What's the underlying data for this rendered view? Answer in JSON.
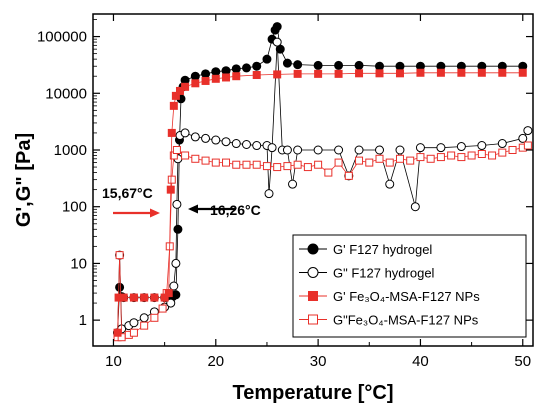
{
  "chart_data": {
    "type": "scatter",
    "xlabel": "Temperature [°C]",
    "ylabel": "G',G\" [Pa]",
    "xlim": [
      8,
      51
    ],
    "ylim": [
      0.35,
      250000
    ],
    "yscale": "log",
    "xticks": [
      "10",
      "20",
      "30",
      "40",
      "50"
    ],
    "yticks": [
      "1",
      "10",
      "100",
      "1000",
      "10000",
      "100000"
    ],
    "annotations": {
      "left": "15,67°C",
      "right": "16,26°C"
    },
    "legend_position": "bottom-right",
    "colors": {
      "black": "#000000",
      "red": "#e8302a"
    },
    "series": [
      {
        "name": "G' F127 hydrogel",
        "marker": "filled-circle",
        "color": "#000000",
        "points": [
          [
            10.4,
            0.6
          ],
          [
            10.6,
            3.8
          ],
          [
            10.8,
            2.6
          ],
          [
            11,
            2.5
          ],
          [
            12,
            2.5
          ],
          [
            13,
            2.5
          ],
          [
            14,
            2.5
          ],
          [
            15,
            2.5
          ],
          [
            15.8,
            2.6
          ],
          [
            16.1,
            2.8
          ],
          [
            16.3,
            40
          ],
          [
            16.45,
            1500
          ],
          [
            16.6,
            8000
          ],
          [
            16.8,
            13000
          ],
          [
            17,
            17000
          ],
          [
            18,
            20000
          ],
          [
            19,
            22000
          ],
          [
            20,
            24000
          ],
          [
            21,
            25000
          ],
          [
            22,
            27000
          ],
          [
            23,
            28000
          ],
          [
            24,
            30000
          ],
          [
            25,
            40000
          ],
          [
            25.5,
            90000
          ],
          [
            25.8,
            130000
          ],
          [
            26,
            150000
          ],
          [
            26.3,
            60000
          ],
          [
            27,
            34000
          ],
          [
            28,
            32000
          ],
          [
            30,
            31000
          ],
          [
            32,
            31000
          ],
          [
            34,
            31000
          ],
          [
            36,
            30000
          ],
          [
            38,
            30000
          ],
          [
            40,
            30000
          ],
          [
            42,
            30000
          ],
          [
            44,
            30000
          ],
          [
            46,
            30000
          ],
          [
            48,
            30000
          ],
          [
            50,
            30000
          ]
        ]
      },
      {
        "name": "G\" F127 hydrogel",
        "marker": "open-circle",
        "color": "#000000",
        "points": [
          [
            10.4,
            0.6
          ],
          [
            10.6,
            14
          ],
          [
            10.8,
            0.7
          ],
          [
            11.5,
            0.8
          ],
          [
            12,
            0.9
          ],
          [
            13,
            1.1
          ],
          [
            14,
            1.4
          ],
          [
            15,
            1.7
          ],
          [
            15.6,
            2
          ],
          [
            15.9,
            4
          ],
          [
            16.1,
            10
          ],
          [
            16.2,
            110
          ],
          [
            16.3,
            700
          ],
          [
            16.5,
            1800
          ],
          [
            17,
            2000
          ],
          [
            18,
            1700
          ],
          [
            19,
            1600
          ],
          [
            20,
            1500
          ],
          [
            21,
            1400
          ],
          [
            22,
            1300
          ],
          [
            23,
            1250
          ],
          [
            24,
            1200
          ],
          [
            25,
            1200
          ],
          [
            25.2,
            170
          ],
          [
            25.5,
            1100
          ],
          [
            26,
            80000
          ],
          [
            26.5,
            1000
          ],
          [
            27,
            1000
          ],
          [
            27.5,
            250
          ],
          [
            28,
            1000
          ],
          [
            30,
            1000
          ],
          [
            32,
            1000
          ],
          [
            33,
            350
          ],
          [
            34,
            1000
          ],
          [
            36,
            1000
          ],
          [
            37,
            250
          ],
          [
            38,
            1000
          ],
          [
            39.5,
            100
          ],
          [
            40,
            1100
          ],
          [
            42,
            1100
          ],
          [
            44,
            1150
          ],
          [
            46,
            1200
          ],
          [
            48,
            1300
          ],
          [
            50,
            1600
          ],
          [
            50.5,
            2200
          ]
        ]
      },
      {
        "name": "G' Fe3O4-MSA-F127 NPs",
        "marker": "filled-square",
        "color": "#e8302a",
        "points": [
          [
            10.4,
            0.6
          ],
          [
            10.5,
            2.5
          ],
          [
            11,
            2.5
          ],
          [
            12,
            2.5
          ],
          [
            13,
            2.5
          ],
          [
            14,
            2.5
          ],
          [
            15,
            2.5
          ],
          [
            15.4,
            3
          ],
          [
            15.6,
            200
          ],
          [
            15.7,
            2000
          ],
          [
            15.9,
            6000
          ],
          [
            16.1,
            9000
          ],
          [
            16.5,
            11000
          ],
          [
            17,
            13000
          ],
          [
            18,
            15000
          ],
          [
            19,
            16500
          ],
          [
            20,
            18000
          ],
          [
            21,
            19000
          ],
          [
            22,
            20000
          ],
          [
            24,
            21000
          ],
          [
            26,
            21500
          ],
          [
            28,
            22000
          ],
          [
            30,
            22000
          ],
          [
            32,
            22000
          ],
          [
            34,
            22500
          ],
          [
            36,
            22500
          ],
          [
            38,
            22500
          ],
          [
            40,
            23000
          ],
          [
            42,
            23000
          ],
          [
            44,
            23000
          ],
          [
            46,
            23000
          ],
          [
            48,
            23000
          ],
          [
            50,
            23000
          ]
        ]
      },
      {
        "name": "G\"Fe3O4-MSA-F127 NPs",
        "marker": "open-square",
        "color": "#e8302a",
        "points": [
          [
            10.4,
            0.5
          ],
          [
            10.6,
            14
          ],
          [
            10.8,
            0.5
          ],
          [
            11.5,
            0.55
          ],
          [
            12,
            0.6
          ],
          [
            13,
            0.8
          ],
          [
            14,
            1.1
          ],
          [
            14.8,
            1.6
          ],
          [
            15.2,
            3
          ],
          [
            15.5,
            20
          ],
          [
            15.7,
            300
          ],
          [
            15.9,
            800
          ],
          [
            16.2,
            1000
          ],
          [
            17,
            800
          ],
          [
            18,
            700
          ],
          [
            19,
            650
          ],
          [
            20,
            600
          ],
          [
            21,
            600
          ],
          [
            22,
            550
          ],
          [
            23,
            550
          ],
          [
            24,
            550
          ],
          [
            25,
            520
          ],
          [
            26,
            500
          ],
          [
            27,
            520
          ],
          [
            28,
            550
          ],
          [
            29,
            500
          ],
          [
            30,
            550
          ],
          [
            31,
            400
          ],
          [
            32,
            600
          ],
          [
            33,
            350
          ],
          [
            34,
            650
          ],
          [
            35,
            600
          ],
          [
            36,
            700
          ],
          [
            37,
            600
          ],
          [
            38,
            700
          ],
          [
            39,
            650
          ],
          [
            40,
            750
          ],
          [
            41,
            700
          ],
          [
            42,
            750
          ],
          [
            43,
            800
          ],
          [
            44,
            750
          ],
          [
            45,
            800
          ],
          [
            46,
            850
          ],
          [
            47,
            800
          ],
          [
            48,
            900
          ],
          [
            49,
            1000
          ],
          [
            50,
            1100
          ],
          [
            50.5,
            1200
          ]
        ]
      }
    ]
  }
}
